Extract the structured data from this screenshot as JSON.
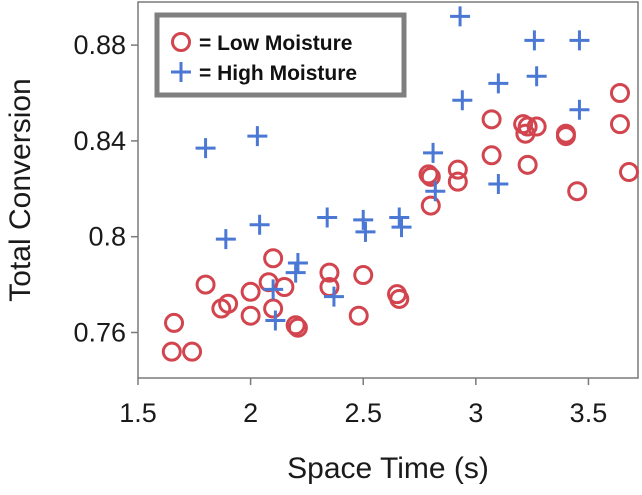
{
  "chart_data": {
    "type": "scatter",
    "xlabel": "Space Time (s)",
    "ylabel": "Total Conversion",
    "xlim": [
      1.5,
      3.72
    ],
    "ylim": [
      0.741,
      0.898
    ],
    "xticks": [
      1.5,
      2,
      2.5,
      3,
      3.5
    ],
    "xtick_labels": [
      "1.5",
      "2",
      "2.5",
      "3",
      "3.5"
    ],
    "yticks": [
      0.76,
      0.8,
      0.84,
      0.88
    ],
    "ytick_labels": [
      "0.76",
      "0.8",
      "0.84",
      "0.88"
    ],
    "grid": false,
    "legend_position": "top-left",
    "series": [
      {
        "name": "= Low Moisture",
        "marker": "circle",
        "color": "#d2454f",
        "points": [
          [
            1.66,
            0.764
          ],
          [
            1.65,
            0.752
          ],
          [
            1.74,
            0.752
          ],
          [
            1.8,
            0.78
          ],
          [
            1.87,
            0.77
          ],
          [
            1.9,
            0.772
          ],
          [
            2.0,
            0.777
          ],
          [
            2.0,
            0.767
          ],
          [
            2.08,
            0.781
          ],
          [
            2.1,
            0.791
          ],
          [
            2.1,
            0.77
          ],
          [
            2.15,
            0.779
          ],
          [
            2.2,
            0.763
          ],
          [
            2.21,
            0.762
          ],
          [
            2.35,
            0.785
          ],
          [
            2.35,
            0.779
          ],
          [
            2.48,
            0.767
          ],
          [
            2.5,
            0.784
          ],
          [
            2.65,
            0.776
          ],
          [
            2.66,
            0.774
          ],
          [
            2.79,
            0.826
          ],
          [
            2.8,
            0.825
          ],
          [
            2.8,
            0.813
          ],
          [
            2.92,
            0.828
          ],
          [
            2.92,
            0.823
          ],
          [
            3.07,
            0.849
          ],
          [
            3.07,
            0.834
          ],
          [
            3.21,
            0.847
          ],
          [
            3.23,
            0.846
          ],
          [
            3.22,
            0.843
          ],
          [
            3.27,
            0.846
          ],
          [
            3.23,
            0.83
          ],
          [
            3.4,
            0.843
          ],
          [
            3.4,
            0.842
          ],
          [
            3.45,
            0.819
          ],
          [
            3.64,
            0.86
          ],
          [
            3.64,
            0.847
          ],
          [
            3.68,
            0.827
          ]
        ]
      },
      {
        "name": "= High Moisture",
        "marker": "plus",
        "color": "#4a78d4",
        "points": [
          [
            1.8,
            0.837
          ],
          [
            1.89,
            0.799
          ],
          [
            2.03,
            0.842
          ],
          [
            2.04,
            0.805
          ],
          [
            2.1,
            0.778
          ],
          [
            2.11,
            0.765
          ],
          [
            2.2,
            0.785
          ],
          [
            2.21,
            0.789
          ],
          [
            2.34,
            0.808
          ],
          [
            2.37,
            0.775
          ],
          [
            2.5,
            0.807
          ],
          [
            2.51,
            0.802
          ],
          [
            2.66,
            0.808
          ],
          [
            2.67,
            0.804
          ],
          [
            2.81,
            0.835
          ],
          [
            2.82,
            0.819
          ],
          [
            2.93,
            0.892
          ],
          [
            2.94,
            0.857
          ],
          [
            3.1,
            0.864
          ],
          [
            3.1,
            0.822
          ],
          [
            3.26,
            0.882
          ],
          [
            3.27,
            0.867
          ],
          [
            3.46,
            0.882
          ],
          [
            3.46,
            0.853
          ]
        ]
      }
    ]
  }
}
